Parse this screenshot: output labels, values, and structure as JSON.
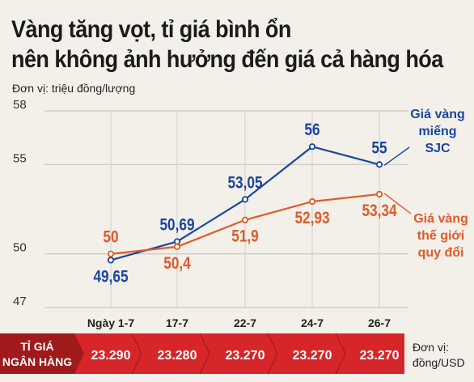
{
  "title_lines": [
    "Vàng tăng vọt, tỉ giá bình ổn",
    "nên không ảnh hưởng đến giá cả hàng hóa"
  ],
  "unit_text": "Đơn vị: triệu đồng/lượng",
  "colors": {
    "sjc": "#1b46a0",
    "world": "#e05a2b",
    "band_red": "#d7262a",
    "band_dark": "#a01a1c",
    "axis": "#bdbdbd",
    "text": "#1b1b1b"
  },
  "chart_data": {
    "type": "line",
    "categories": [
      "Ngày 1-7",
      "17-7",
      "22-7",
      "24-7",
      "26-7"
    ],
    "y_ticks": [
      {
        "value": 47,
        "label": "47"
      },
      {
        "value": 50,
        "label": "50"
      },
      {
        "value": 55,
        "label": "55"
      },
      {
        "value": 58,
        "label": "58"
      }
    ],
    "ylim": [
      47,
      58
    ],
    "series": [
      {
        "name": "Giá vàng miếng SJC",
        "name_lines": [
          "Giá vàng",
          "miếng",
          "SJC"
        ],
        "color": "#1b46a0",
        "values": [
          49.65,
          50.69,
          53.05,
          56,
          55
        ],
        "labels": [
          "49,65",
          "50,69",
          "53,05",
          "56",
          "55"
        ],
        "label_side": [
          "below",
          "above",
          "above",
          "above",
          "above"
        ]
      },
      {
        "name": "Giá vàng thế giới quy đổi",
        "name_lines": [
          "Giá vàng",
          "thế giới",
          "quy đổi"
        ],
        "color": "#e05a2b",
        "values": [
          50,
          50.4,
          51.9,
          52.93,
          53.34
        ],
        "labels": [
          "50",
          "50,4",
          "51,9",
          "52,93",
          "53,34"
        ],
        "label_side": [
          "above",
          "below",
          "below",
          "below",
          "below"
        ]
      }
    ]
  },
  "exchange_band": {
    "label_lines": [
      "TỈ GIÁ",
      "NGÂN HÀNG"
    ],
    "values": [
      "23.290",
      "23.280",
      "23.270",
      "23.270",
      "23.270"
    ],
    "unit_lines": [
      "Đơn vị:",
      "đồng/USD"
    ]
  }
}
